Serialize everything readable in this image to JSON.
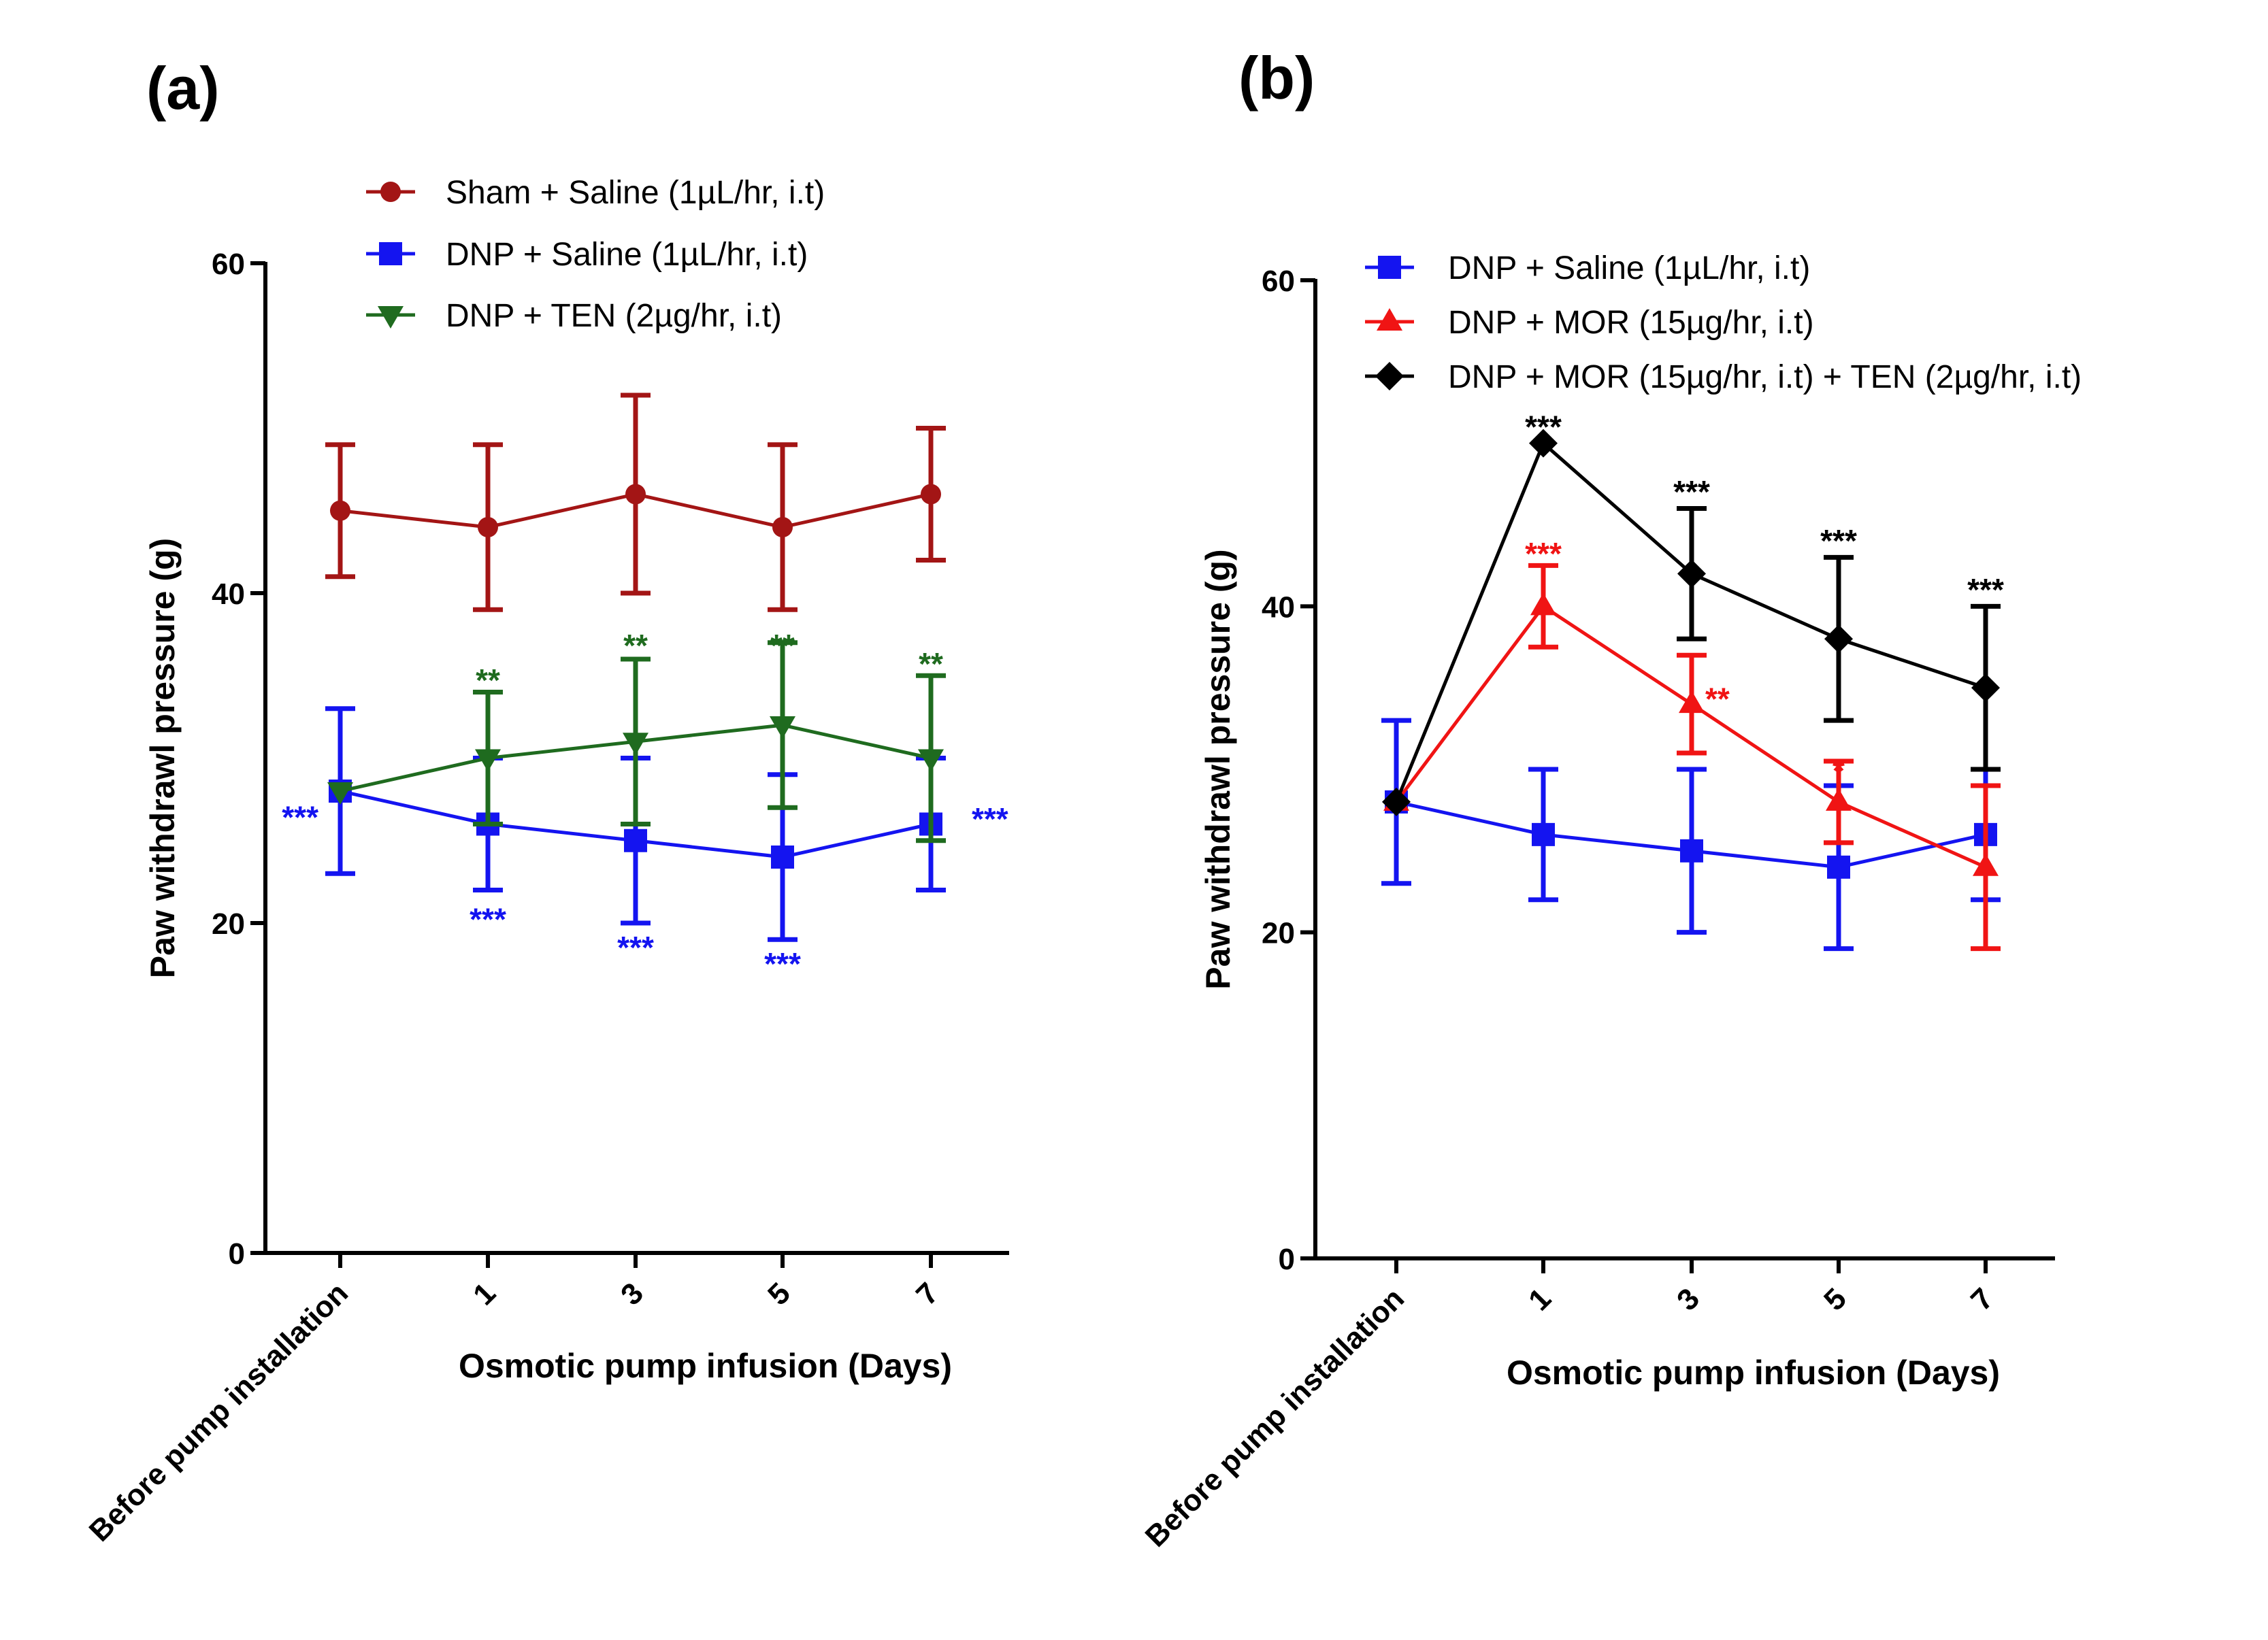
{
  "chart_data": [
    {
      "type": "line",
      "panel_label": "(a)",
      "xlabel": "Osmotic pump infusion (Days)",
      "ylabel": "Paw withdrawl pressure (g)",
      "categories": [
        "Before pump installation",
        "1",
        "3",
        "5",
        "7"
      ],
      "yticks": [
        "0",
        "20",
        "40",
        "60"
      ],
      "ylim": [
        0,
        60
      ],
      "legend_position": "top",
      "series": [
        {
          "name": "Sham + Saline (1µL/hr, i.t)",
          "color": "#a31515",
          "marker": "circle",
          "values": [
            45,
            44,
            46,
            44,
            46
          ],
          "err_low": [
            41,
            39,
            40,
            39,
            42
          ],
          "err_high": [
            49,
            49,
            52,
            49,
            50
          ]
        },
        {
          "name": "DNP + Saline (1µL/hr, i.t)",
          "color": "#1414f0",
          "marker": "square",
          "values": [
            28,
            26,
            25,
            24,
            26
          ],
          "err_low": [
            23,
            22,
            20,
            19,
            22
          ],
          "err_high": [
            33,
            30,
            30,
            29,
            30
          ]
        },
        {
          "name": "DNP + TEN (2µg/hr, i.t)",
          "color": "#1f6b1f",
          "marker": "triangle-down",
          "values": [
            28,
            30,
            31,
            32,
            30
          ],
          "err_low": [
            28,
            26,
            26,
            27,
            25
          ],
          "err_high": [
            28,
            34,
            36,
            37,
            35
          ]
        }
      ],
      "annotations": [
        {
          "text": "***",
          "color": "#1414f0",
          "cat": 0,
          "y": 26.5,
          "side": "left"
        },
        {
          "text": "***",
          "color": "#1414f0",
          "cat": 1,
          "y": 20.3,
          "side": "center"
        },
        {
          "text": "***",
          "color": "#1414f0",
          "cat": 2,
          "y": 18.6,
          "side": "center"
        },
        {
          "text": "***",
          "color": "#1414f0",
          "cat": 3,
          "y": 17.6,
          "side": "center"
        },
        {
          "text": "***",
          "color": "#1414f0",
          "cat": 4,
          "y": 26.4,
          "side": "right"
        },
        {
          "text": "**",
          "color": "#1f6b1f",
          "cat": 1,
          "y": 34.8,
          "side": "center"
        },
        {
          "text": "**",
          "color": "#1f6b1f",
          "cat": 2,
          "y": 36.9,
          "side": "center"
        },
        {
          "text": "**",
          "color": "#1f6b1f",
          "cat": 3,
          "y": 36.9,
          "side": "center"
        },
        {
          "text": "**",
          "color": "#1f6b1f",
          "cat": 4,
          "y": 35.8,
          "side": "center"
        }
      ]
    },
    {
      "type": "line",
      "panel_label": "(b)",
      "xlabel": "Osmotic pump infusion (Days)",
      "ylabel": "Paw withdrawl pressure (g)",
      "categories": [
        "Before pump installation",
        "1",
        "3",
        "5",
        "7"
      ],
      "yticks": [
        "0",
        "20",
        "40",
        "60"
      ],
      "ylim": [
        0,
        60
      ],
      "legend_position": "top",
      "series": [
        {
          "name": "DNP + Saline (1µL/hr, i.t)",
          "color": "#1414f0",
          "marker": "square",
          "values": [
            28,
            26,
            25,
            24,
            26
          ],
          "err_low": [
            23,
            22,
            20,
            19,
            22
          ],
          "err_high": [
            33,
            30,
            30,
            29,
            30
          ]
        },
        {
          "name": "DNP + MOR (15µg/hr, i.t)",
          "color": "#f01414",
          "marker": "triangle-up",
          "values": [
            28,
            40,
            34,
            28,
            24
          ],
          "err_low": [
            28,
            37.5,
            31,
            25.5,
            19
          ],
          "err_high": [
            28,
            42.5,
            37,
            30.5,
            29
          ]
        },
        {
          "name": "DNP + MOR (15µg/hr, i.t) + TEN (2µg/hr, i.t)",
          "color": "#000000",
          "marker": "diamond",
          "values": [
            28,
            50,
            42,
            38,
            35
          ],
          "err_low": [
            28,
            50,
            38,
            33,
            30
          ],
          "err_high": [
            28,
            50,
            46,
            43,
            40
          ]
        }
      ],
      "annotations": [
        {
          "text": "***",
          "color": "#000000",
          "cat": 1,
          "y": 51.1,
          "side": "center"
        },
        {
          "text": "***",
          "color": "#f01414",
          "cat": 1,
          "y": 43.3,
          "side": "center"
        },
        {
          "text": "***",
          "color": "#000000",
          "cat": 2,
          "y": 47.1,
          "side": "center"
        },
        {
          "text": "**",
          "color": "#f01414",
          "cat": 2,
          "y": 34.4,
          "side": "right-tight"
        },
        {
          "text": "***",
          "color": "#000000",
          "cat": 3,
          "y": 44.1,
          "side": "center"
        },
        {
          "text": "*",
          "color": "#f01414",
          "cat": 3,
          "y": 30.0,
          "side": "center"
        },
        {
          "text": "***",
          "color": "#000000",
          "cat": 4,
          "y": 41.1,
          "side": "center"
        }
      ]
    }
  ]
}
